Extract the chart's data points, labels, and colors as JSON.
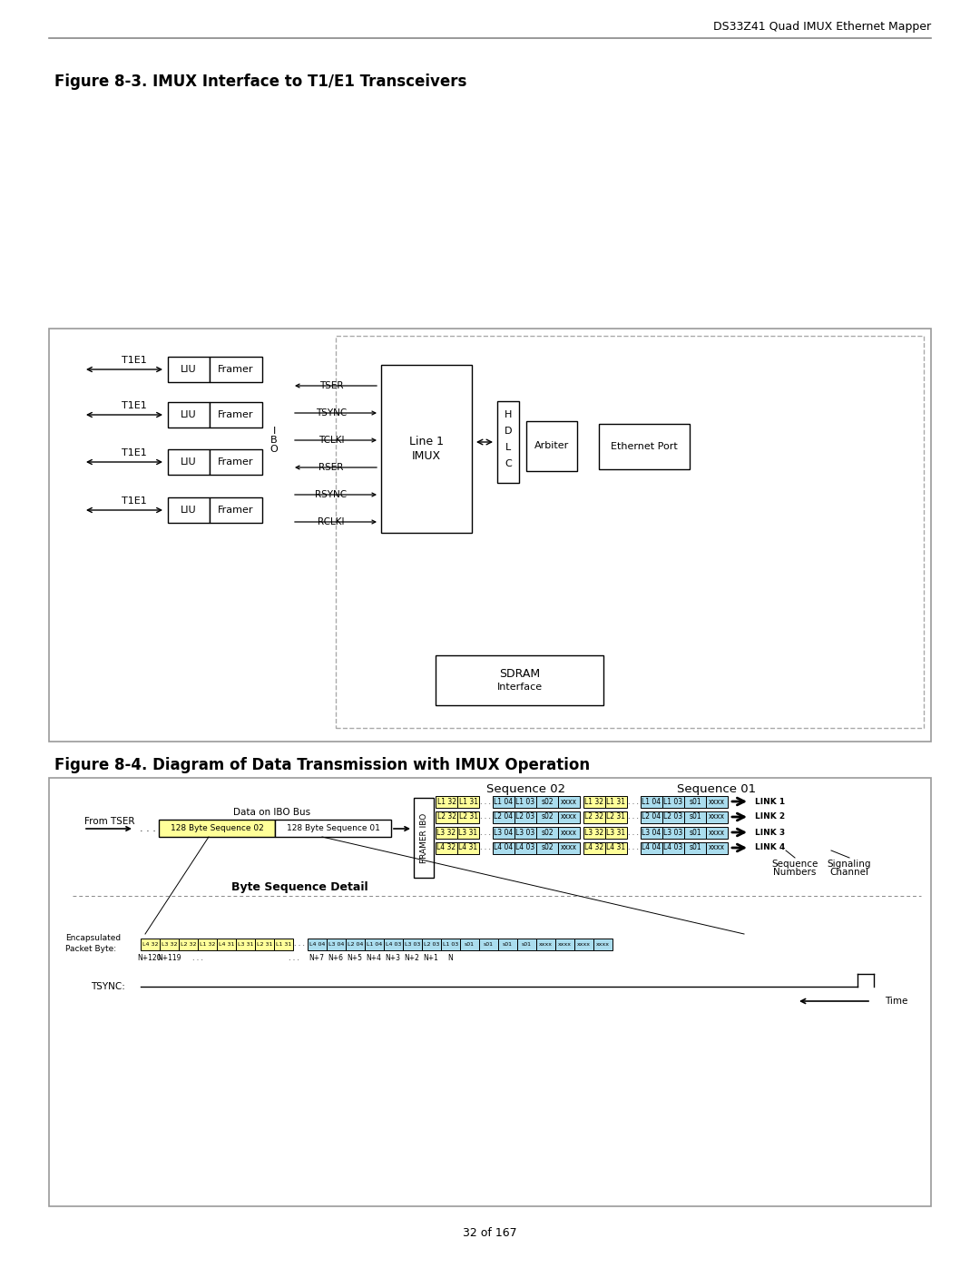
{
  "header_text": "DS33Z41 Quad IMUX Ethernet Mapper",
  "fig1_title": "Figure 8-3. IMUX Interface to T1/E1 Transceivers",
  "fig2_title": "Figure 8-4. Diagram of Data Transmission with IMUX Operation",
  "page_number": "32 of 167",
  "bg_color": "#ffffff",
  "yellow_fill": "#ffff99",
  "cyan_fill": "#aaddee",
  "gray_edge": "#888888"
}
